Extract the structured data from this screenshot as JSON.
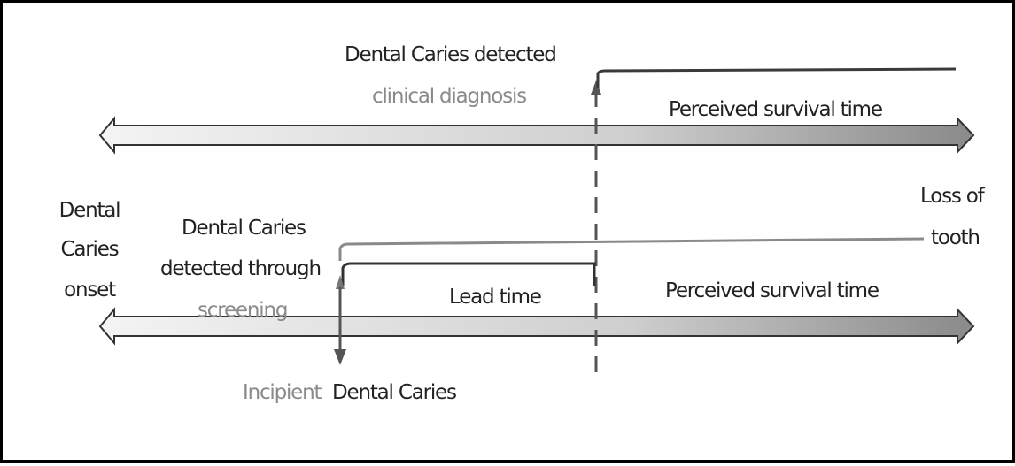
{
  "labels": {
    "detected": "Dental Caries detected",
    "clinical": "clinical diagnosis",
    "perceived_top": "Perceived survival time",
    "onset_1": "Dental",
    "onset_2": "Caries",
    "onset_3": "onset",
    "screen_1": "Dental Caries",
    "screen_2": "detected through",
    "screen_3": "screening",
    "loss_1": "Loss of",
    "loss_2": "tooth",
    "lead": "Lead time",
    "perceived_bottom": "Perceived survival time",
    "incipient": "Incipient",
    "incipient_caries": "Dental Caries"
  },
  "colors": {
    "arrow_light": "#f2f2f2",
    "arrow_dark": "#8c8c8c",
    "outline": "#333333",
    "grey_text": "#8a8a8a"
  }
}
